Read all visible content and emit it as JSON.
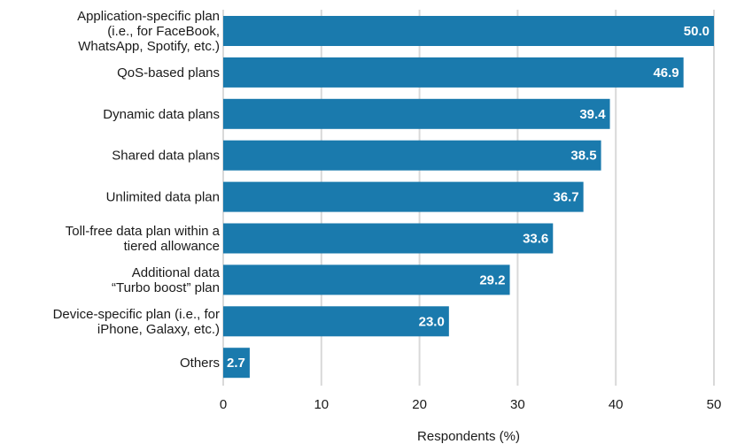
{
  "chart_data": {
    "type": "bar",
    "orientation": "horizontal",
    "categories": [
      [
        "Application-specific plan",
        "(i.e., for FaceBook,",
        "WhatsApp, Spotify, etc.)"
      ],
      [
        "QoS-based plans"
      ],
      [
        "Dynamic data plans"
      ],
      [
        "Shared data plans"
      ],
      [
        "Unlimited data plan"
      ],
      [
        "Toll-free data plan within a",
        "tiered allowance"
      ],
      [
        "Additional data",
        "“Turbo boost” plan"
      ],
      [
        "Device-specific plan (i.e., for",
        "iPhone, Galaxy, etc.)"
      ],
      [
        "Others"
      ]
    ],
    "values": [
      50.0,
      46.9,
      39.4,
      38.5,
      36.7,
      33.6,
      29.2,
      23.0,
      2.7
    ],
    "value_labels": [
      "50.0",
      "46.9",
      "39.4",
      "38.5",
      "36.7",
      "33.6",
      "29.2",
      "23.0",
      "2.7"
    ],
    "title": "",
    "xlabel": "Respondents (%)",
    "ylabel": "",
    "xlim": [
      0,
      50
    ],
    "xticks": [
      "0",
      "10",
      "20",
      "30",
      "40",
      "50"
    ],
    "grid": "vertical",
    "bar_color": "#1a7aad"
  }
}
